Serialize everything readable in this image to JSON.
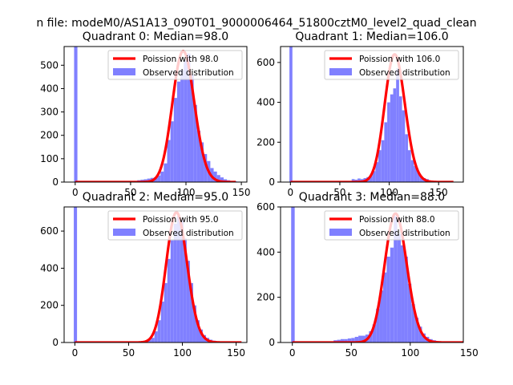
{
  "suptitle": "n file: modeM0/AS1A13_090T01_9000006464_51800cztM0_level2_quad_clean",
  "colors": {
    "fit": "#ff0000",
    "hist": "#8080ff",
    "axes": "#000000",
    "background": "#ffffff"
  },
  "chart_data": [
    {
      "type": "bar",
      "title": "Quadrant 0: Median=98.0",
      "xlim": [
        -10,
        155
      ],
      "ylim": [
        0,
        580
      ],
      "xticks": [
        0,
        50,
        100,
        150
      ],
      "yticks": [
        0,
        100,
        200,
        300,
        400,
        500
      ],
      "legend_position": "top-right",
      "series": [
        {
          "name": "Poission with 98.0",
          "kind": "line",
          "lambda": 98.0,
          "amplitude": 560,
          "x_range": [
            0,
            145
          ]
        },
        {
          "name": "Observed distribution",
          "kind": "histogram",
          "bin_width": 3,
          "bins": [
            [
              -1,
              580
            ],
            [
              2,
              0
            ],
            [
              5,
              0
            ],
            [
              8,
              0
            ],
            [
              11,
              0
            ],
            [
              14,
              0
            ],
            [
              17,
              0
            ],
            [
              20,
              0
            ],
            [
              23,
              0
            ],
            [
              26,
              0
            ],
            [
              29,
              0
            ],
            [
              32,
              0
            ],
            [
              35,
              0
            ],
            [
              38,
              0
            ],
            [
              41,
              0
            ],
            [
              44,
              0
            ],
            [
              47,
              0
            ],
            [
              50,
              0
            ],
            [
              53,
              5
            ],
            [
              56,
              8
            ],
            [
              59,
              10
            ],
            [
              62,
              12
            ],
            [
              65,
              15
            ],
            [
              68,
              18
            ],
            [
              71,
              20
            ],
            [
              74,
              28
            ],
            [
              77,
              45
            ],
            [
              80,
              80
            ],
            [
              83,
              180
            ],
            [
              86,
              260
            ],
            [
              89,
              360
            ],
            [
              92,
              430
            ],
            [
              95,
              480
            ],
            [
              98,
              520
            ],
            [
              101,
              550
            ],
            [
              104,
              460
            ],
            [
              107,
              330
            ],
            [
              110,
              220
            ],
            [
              113,
              170
            ],
            [
              116,
              120
            ],
            [
              119,
              90
            ],
            [
              122,
              60
            ],
            [
              125,
              45
            ],
            [
              128,
              30
            ],
            [
              131,
              20
            ],
            [
              134,
              12
            ],
            [
              137,
              8
            ],
            [
              140,
              5
            ],
            [
              143,
              3
            ],
            [
              146,
              2
            ]
          ]
        }
      ]
    },
    {
      "type": "bar",
      "title": "Quadrant 1: Median=106.0",
      "xlim": [
        -10,
        175
      ],
      "ylim": [
        0,
        680
      ],
      "xticks": [
        0,
        50,
        100,
        150
      ],
      "yticks": [
        0,
        200,
        400,
        600
      ],
      "legend_position": "top-right",
      "series": [
        {
          "name": "Poission with 106.0",
          "kind": "line",
          "lambda": 106.0,
          "amplitude": 640,
          "x_range": [
            0,
            165
          ]
        },
        {
          "name": "Observed distribution",
          "kind": "histogram",
          "bin_width": 3,
          "bins": [
            [
              -1,
              680
            ],
            [
              2,
              0
            ],
            [
              5,
              0
            ],
            [
              8,
              0
            ],
            [
              11,
              0
            ],
            [
              14,
              0
            ],
            [
              17,
              0
            ],
            [
              20,
              0
            ],
            [
              23,
              0
            ],
            [
              26,
              0
            ],
            [
              29,
              0
            ],
            [
              32,
              0
            ],
            [
              35,
              0
            ],
            [
              38,
              0
            ],
            [
              41,
              0
            ],
            [
              44,
              0
            ],
            [
              47,
              0
            ],
            [
              50,
              0
            ],
            [
              53,
              0
            ],
            [
              56,
              0
            ],
            [
              59,
              0
            ],
            [
              62,
              15
            ],
            [
              65,
              12
            ],
            [
              68,
              18
            ],
            [
              71,
              15
            ],
            [
              74,
              20
            ],
            [
              77,
              25
            ],
            [
              80,
              30
            ],
            [
              83,
              55
            ],
            [
              86,
              100
            ],
            [
              89,
              160
            ],
            [
              92,
              210
            ],
            [
              95,
              300
            ],
            [
              98,
              400
            ],
            [
              101,
              440
            ],
            [
              104,
              470
            ],
            [
              107,
              570
            ],
            [
              110,
              430
            ],
            [
              113,
              360
            ],
            [
              116,
              240
            ],
            [
              119,
              160
            ],
            [
              122,
              110
            ],
            [
              125,
              80
            ],
            [
              128,
              50
            ],
            [
              131,
              30
            ],
            [
              134,
              20
            ],
            [
              137,
              15
            ],
            [
              140,
              8
            ],
            [
              143,
              5
            ],
            [
              146,
              3
            ],
            [
              149,
              2
            ],
            [
              152,
              1
            ]
          ]
        }
      ]
    },
    {
      "type": "bar",
      "title": "Quadrant 2: Median=95.0",
      "xlim": [
        -10,
        160
      ],
      "ylim": [
        0,
        730
      ],
      "xticks": [
        0,
        50,
        100,
        150
      ],
      "yticks": [
        0,
        200,
        400,
        600
      ],
      "legend_position": "top-right",
      "series": [
        {
          "name": "Poission with 95.0",
          "kind": "line",
          "lambda": 95.0,
          "amplitude": 700,
          "x_range": [
            0,
            155
          ]
        },
        {
          "name": "Observed distribution",
          "kind": "histogram",
          "bin_width": 3,
          "bins": [
            [
              -1,
              730
            ],
            [
              2,
              0
            ],
            [
              5,
              0
            ],
            [
              8,
              0
            ],
            [
              11,
              0
            ],
            [
              14,
              0
            ],
            [
              17,
              0
            ],
            [
              20,
              0
            ],
            [
              23,
              0
            ],
            [
              26,
              0
            ],
            [
              29,
              0
            ],
            [
              32,
              0
            ],
            [
              35,
              0
            ],
            [
              38,
              0
            ],
            [
              41,
              0
            ],
            [
              44,
              0
            ],
            [
              47,
              0
            ],
            [
              50,
              0
            ],
            [
              53,
              0
            ],
            [
              56,
              0
            ],
            [
              59,
              0
            ],
            [
              62,
              8
            ],
            [
              65,
              10
            ],
            [
              68,
              15
            ],
            [
              71,
              25
            ],
            [
              74,
              60
            ],
            [
              77,
              120
            ],
            [
              80,
              220
            ],
            [
              83,
              320
            ],
            [
              86,
              450
            ],
            [
              89,
              550
            ],
            [
              92,
              640
            ],
            [
              95,
              680
            ],
            [
              98,
              660
            ],
            [
              101,
              560
            ],
            [
              104,
              440
            ],
            [
              107,
              320
            ],
            [
              110,
              200
            ],
            [
              113,
              120
            ],
            [
              116,
              70
            ],
            [
              119,
              40
            ],
            [
              122,
              25
            ],
            [
              125,
              15
            ],
            [
              128,
              10
            ],
            [
              131,
              5
            ],
            [
              134,
              3
            ],
            [
              137,
              2
            ]
          ]
        }
      ]
    },
    {
      "type": "bar",
      "title": "Quadrant 3: Median=88.0",
      "xlim": [
        -10,
        145
      ],
      "ylim": [
        0,
        600
      ],
      "xticks": [
        0,
        50,
        100,
        150
      ],
      "yticks": [
        0,
        200,
        400,
        600
      ],
      "legend_position": "top-right",
      "series": [
        {
          "name": "Poission with 88.0",
          "kind": "line",
          "lambda": 88.0,
          "amplitude": 570,
          "x_range": [
            0,
            145
          ]
        },
        {
          "name": "Observed distribution",
          "kind": "histogram",
          "bin_width": 3,
          "bins": [
            [
              -1,
              600
            ],
            [
              2,
              0
            ],
            [
              5,
              0
            ],
            [
              8,
              0
            ],
            [
              11,
              0
            ],
            [
              14,
              0
            ],
            [
              17,
              0
            ],
            [
              20,
              0
            ],
            [
              23,
              0
            ],
            [
              26,
              0
            ],
            [
              29,
              0
            ],
            [
              32,
              0
            ],
            [
              35,
              10
            ],
            [
              38,
              12
            ],
            [
              41,
              15
            ],
            [
              44,
              15
            ],
            [
              47,
              18
            ],
            [
              50,
              20
            ],
            [
              53,
              25
            ],
            [
              56,
              30
            ],
            [
              59,
              30
            ],
            [
              62,
              35
            ],
            [
              65,
              50
            ],
            [
              68,
              80
            ],
            [
              71,
              150
            ],
            [
              74,
              230
            ],
            [
              77,
              310
            ],
            [
              80,
              380
            ],
            [
              83,
              420
            ],
            [
              86,
              560
            ],
            [
              89,
              480
            ],
            [
              92,
              430
            ],
            [
              95,
              380
            ],
            [
              98,
              260
            ],
            [
              101,
              170
            ],
            [
              104,
              110
            ],
            [
              107,
              70
            ],
            [
              110,
              40
            ],
            [
              113,
              25
            ],
            [
              116,
              15
            ],
            [
              119,
              10
            ],
            [
              122,
              6
            ],
            [
              125,
              4
            ],
            [
              128,
              2
            ]
          ]
        }
      ]
    }
  ]
}
